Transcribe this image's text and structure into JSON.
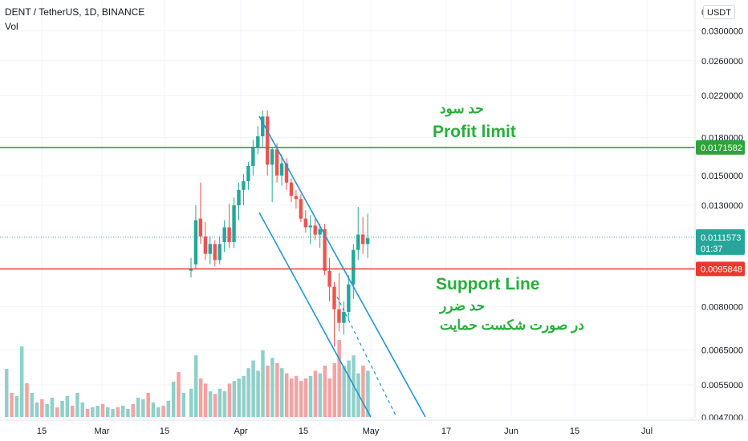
{
  "header": {
    "symbol": "DENT / TetherUS, 1D, BINANCE",
    "indicator": "Vol"
  },
  "currency_button": "USDT",
  "annotations": {
    "profit_fa": "حد سود",
    "profit_en": "Profit limit",
    "support_en": "Support Line",
    "stop_fa": "حد ضرر",
    "stop_note_fa": "در صورت شکست حمایت"
  },
  "price_axis": {
    "ticks": [
      "0.0300000",
      "0.0260000",
      "0.0220000",
      "0.0180000",
      "0.0150000",
      "0.0130000",
      "0.0080000",
      "0.0065000",
      "0.0055000",
      "0.0047000"
    ],
    "top_partial": "0.0 0"
  },
  "time_axis": {
    "ticks": [
      "15",
      "Mar",
      "15",
      "Apr",
      "15",
      "May",
      "17",
      "Jun",
      "15",
      "Jul"
    ]
  },
  "price_labels": {
    "profit": "0.0171582",
    "current": "0.0111573",
    "countdown": "01:37",
    "support": "0.0095848"
  },
  "colors": {
    "up": "#26a69a",
    "down": "#ef5350",
    "vol_up": "#8fd0c9",
    "vol_down": "#f3a3a1",
    "profit_line": "#2fa33a",
    "support_line": "#e8392f",
    "channel": "#2196cf",
    "current_line": "#35a79a",
    "annotation": "#27ae3c"
  },
  "chart_data": {
    "type": "candlestick",
    "title": "DENT / TetherUS, 1D, BINANCE",
    "yscale": "log",
    "ylim": [
      0.0042,
      0.034
    ],
    "levels": {
      "profit_limit": 0.0171582,
      "support_line": 0.0095848,
      "last_price": 0.0111573
    },
    "candles": [
      [
        0.0095,
        0.0101,
        0.0092,
        0.0096
      ],
      [
        0.0098,
        0.013,
        0.0096,
        0.0121
      ],
      [
        0.0122,
        0.0145,
        0.0108,
        0.0112
      ],
      [
        0.0112,
        0.012,
        0.01,
        0.0103
      ],
      [
        0.0103,
        0.0112,
        0.0098,
        0.0108
      ],
      [
        0.0108,
        0.011,
        0.0097,
        0.01
      ],
      [
        0.01,
        0.0112,
        0.0098,
        0.0108
      ],
      [
        0.0109,
        0.0121,
        0.0104,
        0.0117
      ],
      [
        0.0117,
        0.0131,
        0.0106,
        0.0109
      ],
      [
        0.0109,
        0.0135,
        0.0106,
        0.013
      ],
      [
        0.013,
        0.0145,
        0.0121,
        0.014
      ],
      [
        0.014,
        0.0151,
        0.013,
        0.0146
      ],
      [
        0.0146,
        0.016,
        0.014,
        0.0157
      ],
      [
        0.0157,
        0.0178,
        0.015,
        0.0172
      ],
      [
        0.0172,
        0.019,
        0.0166,
        0.0181
      ],
      [
        0.0181,
        0.0205,
        0.0172,
        0.0199
      ],
      [
        0.0199,
        0.0205,
        0.015,
        0.0158
      ],
      [
        0.0158,
        0.0172,
        0.0132,
        0.017
      ],
      [
        0.017,
        0.0175,
        0.0145,
        0.015
      ],
      [
        0.015,
        0.0166,
        0.0143,
        0.0159
      ],
      [
        0.0159,
        0.0163,
        0.014,
        0.0145
      ],
      [
        0.0145,
        0.0148,
        0.0132,
        0.0136
      ],
      [
        0.0136,
        0.014,
        0.0128,
        0.0134
      ],
      [
        0.0134,
        0.0137,
        0.012,
        0.0122
      ],
      [
        0.0122,
        0.0127,
        0.0114,
        0.0117
      ],
      [
        0.0117,
        0.0124,
        0.0108,
        0.0118
      ],
      [
        0.0118,
        0.0122,
        0.011,
        0.0113
      ],
      [
        0.0113,
        0.0119,
        0.0106,
        0.0116
      ],
      [
        0.0116,
        0.0119,
        0.0093,
        0.0095
      ],
      [
        0.0095,
        0.0101,
        0.0082,
        0.0088
      ],
      [
        0.0088,
        0.009,
        0.0066,
        0.0079
      ],
      [
        0.0079,
        0.0094,
        0.0071,
        0.0074
      ],
      [
        0.0074,
        0.0082,
        0.007,
        0.0078
      ],
      [
        0.0078,
        0.0093,
        0.0075,
        0.0089
      ],
      [
        0.0089,
        0.0108,
        0.0083,
        0.0105
      ],
      [
        0.0105,
        0.0129,
        0.01,
        0.0113
      ],
      [
        0.0113,
        0.0123,
        0.0103,
        0.0108
      ],
      [
        0.0108,
        0.0125,
        0.0101,
        0.0111
      ]
    ],
    "volumes": [
      22,
      48,
      30,
      26,
      20,
      18,
      22,
      20,
      26,
      28,
      30,
      32,
      38,
      44,
      36,
      52,
      40,
      46,
      42,
      38,
      34,
      30,
      32,
      28,
      30,
      32,
      36,
      34,
      40,
      30,
      42,
      60,
      40,
      44,
      48,
      34,
      40,
      36
    ]
  }
}
